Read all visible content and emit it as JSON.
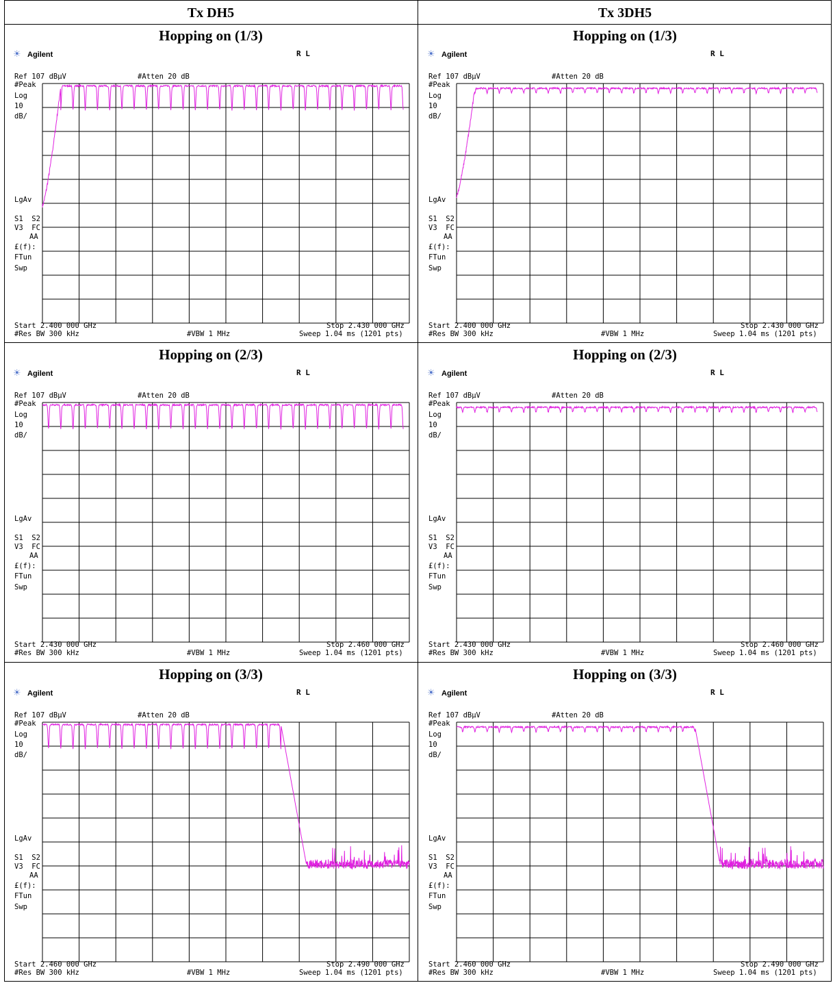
{
  "columns": [
    "Tx DH5",
    "Tx 3DH5"
  ],
  "brand": "Agilent",
  "rl": "R L",
  "labels": {
    "ref": "Ref 107 dBμV",
    "atten": "#Atten 20 dB",
    "peak": "#Peak",
    "log": "Log",
    "scale": "10",
    "db": "dB/",
    "lgav": "LgAv",
    "s1s2": "S1  S2",
    "v3fc": "V3  FC",
    "aa": "AA",
    "ef": "£(f):",
    "ftun": "FTun",
    "swp": "Swp",
    "resbw": "#Res BW 300 kHz",
    "vbw": "#VBW 1 MHz",
    "sweep": "Sweep 1.04 ms (1201 pts)"
  },
  "rows": [
    {
      "title": "Hopping on (1/3)",
      "start": "Start 2.400 000 GHz",
      "stop": "Stop 2.430 000 GHz"
    },
    {
      "title": "Hopping on (2/3)",
      "start": "Start 2.430 000 GHz",
      "stop": "Stop 2.460 000 GHz"
    },
    {
      "title": "Hopping on (3/3)",
      "start": "Start 2.460 000 GHz",
      "stop": "Stop 2.490 000 GHz"
    }
  ],
  "colors": {
    "trace": "#e020e0",
    "grid": "#000000"
  },
  "chart_data": [
    {
      "type": "line",
      "mode": "DH5",
      "x_start_ghz": 2.4,
      "x_stop_ghz": 2.43,
      "ref_dbuv": 107,
      "db_per_div": 10,
      "channels_mhz": [
        2402,
        2403,
        2404,
        2405,
        2406,
        2407,
        2408,
        2409,
        2410,
        2411,
        2412,
        2413,
        2414,
        2415,
        2416,
        2417,
        2418,
        2419,
        2420,
        2421,
        2422,
        2423,
        2424,
        2425,
        2426,
        2427,
        2428,
        2429
      ],
      "peak_dbuv": 106,
      "notch_dbuv": 96,
      "floor_dbuv": 56
    },
    {
      "type": "line",
      "mode": "3DH5",
      "x_start_ghz": 2.4,
      "x_stop_ghz": 2.43,
      "ref_dbuv": 107,
      "db_per_div": 10,
      "channels_mhz": [
        2402,
        2403,
        2404,
        2405,
        2406,
        2407,
        2408,
        2409,
        2410,
        2411,
        2412,
        2413,
        2414,
        2415,
        2416,
        2417,
        2418,
        2419,
        2420,
        2421,
        2422,
        2423,
        2424,
        2425,
        2426,
        2427,
        2428,
        2429
      ],
      "peak_dbuv": 105,
      "notch_dbuv": 103,
      "floor_dbuv": 60
    },
    {
      "type": "line",
      "mode": "DH5",
      "x_start_ghz": 2.43,
      "x_stop_ghz": 2.46,
      "ref_dbuv": 107,
      "db_per_div": 10,
      "channels_mhz": [
        2430,
        2431,
        2432,
        2433,
        2434,
        2435,
        2436,
        2437,
        2438,
        2439,
        2440,
        2441,
        2442,
        2443,
        2444,
        2445,
        2446,
        2447,
        2448,
        2449,
        2450,
        2451,
        2452,
        2453,
        2454,
        2455,
        2456,
        2457,
        2458,
        2459
      ],
      "peak_dbuv": 106,
      "notch_dbuv": 96
    },
    {
      "type": "line",
      "mode": "3DH5",
      "x_start_ghz": 2.43,
      "x_stop_ghz": 2.46,
      "ref_dbuv": 107,
      "db_per_div": 10,
      "channels_mhz": [
        2430,
        2431,
        2432,
        2433,
        2434,
        2435,
        2436,
        2437,
        2438,
        2439,
        2440,
        2441,
        2442,
        2443,
        2444,
        2445,
        2446,
        2447,
        2448,
        2449,
        2450,
        2451,
        2452,
        2453,
        2454,
        2455,
        2456,
        2457,
        2458,
        2459
      ],
      "peak_dbuv": 105,
      "notch_dbuv": 103
    },
    {
      "type": "line",
      "mode": "DH5",
      "x_start_ghz": 2.46,
      "x_stop_ghz": 2.49,
      "ref_dbuv": 107,
      "db_per_div": 10,
      "channels_mhz": [
        2460,
        2461,
        2462,
        2463,
        2464,
        2465,
        2466,
        2467,
        2468,
        2469,
        2470,
        2471,
        2472,
        2473,
        2474,
        2475,
        2476,
        2477,
        2478,
        2479
      ],
      "peak_dbuv": 106,
      "notch_dbuv": 96,
      "noise_dbuv": 47
    },
    {
      "type": "line",
      "mode": "3DH5",
      "x_start_ghz": 2.46,
      "x_stop_ghz": 2.49,
      "ref_dbuv": 107,
      "db_per_div": 10,
      "channels_mhz": [
        2460,
        2461,
        2462,
        2463,
        2464,
        2465,
        2466,
        2467,
        2468,
        2469,
        2470,
        2471,
        2472,
        2473,
        2474,
        2475,
        2476,
        2477,
        2478,
        2479
      ],
      "peak_dbuv": 105,
      "notch_dbuv": 103,
      "noise_dbuv": 47
    }
  ]
}
